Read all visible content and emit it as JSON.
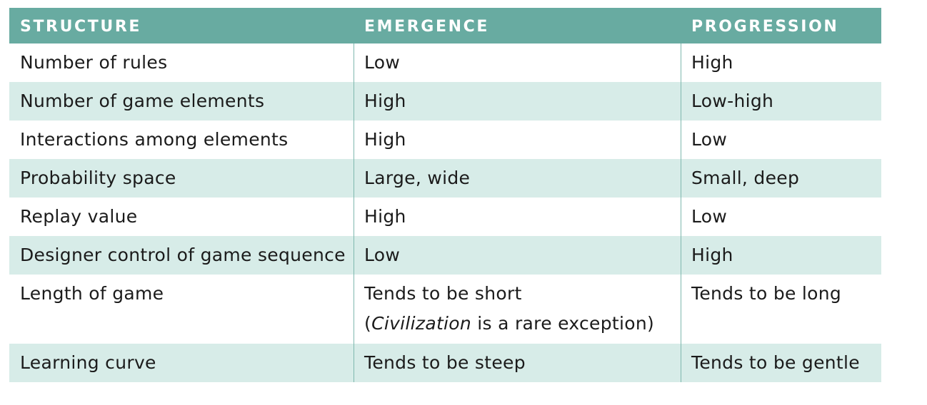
{
  "columns": [
    "STRUCTURE",
    "EMERGENCE",
    "PROGRESSION"
  ],
  "rows": [
    {
      "structure": "Number of rules",
      "emergence": "Low",
      "progression": "High"
    },
    {
      "structure": "Number of game elements",
      "emergence": "High",
      "progression": "Low-high"
    },
    {
      "structure": "Interactions among elements",
      "emergence": "High",
      "progression": "Low"
    },
    {
      "structure": "Probability space",
      "emergence": "Large, wide",
      "progression": "Small, deep"
    },
    {
      "structure": "Replay value",
      "emergence": "High",
      "progression": "Low"
    },
    {
      "structure": "Designer control of game sequence",
      "emergence": "Low",
      "progression": "High"
    },
    {
      "structure": "Length of game",
      "emergence": "Tends to be short",
      "emergence_note_open": "(",
      "emergence_note_italic": "Civilization",
      "emergence_note_rest": " is a rare exception)",
      "progression": "Tends to be long"
    },
    {
      "structure": "Learning curve",
      "emergence": "Tends to be steep",
      "progression": "Tends to be gentle"
    }
  ],
  "colors": {
    "header_bg": "#68aba1",
    "header_text": "#ffffff",
    "row_alt_bg": "#d7ece8",
    "row_bg": "#ffffff",
    "divider": "#7fb8ae"
  }
}
